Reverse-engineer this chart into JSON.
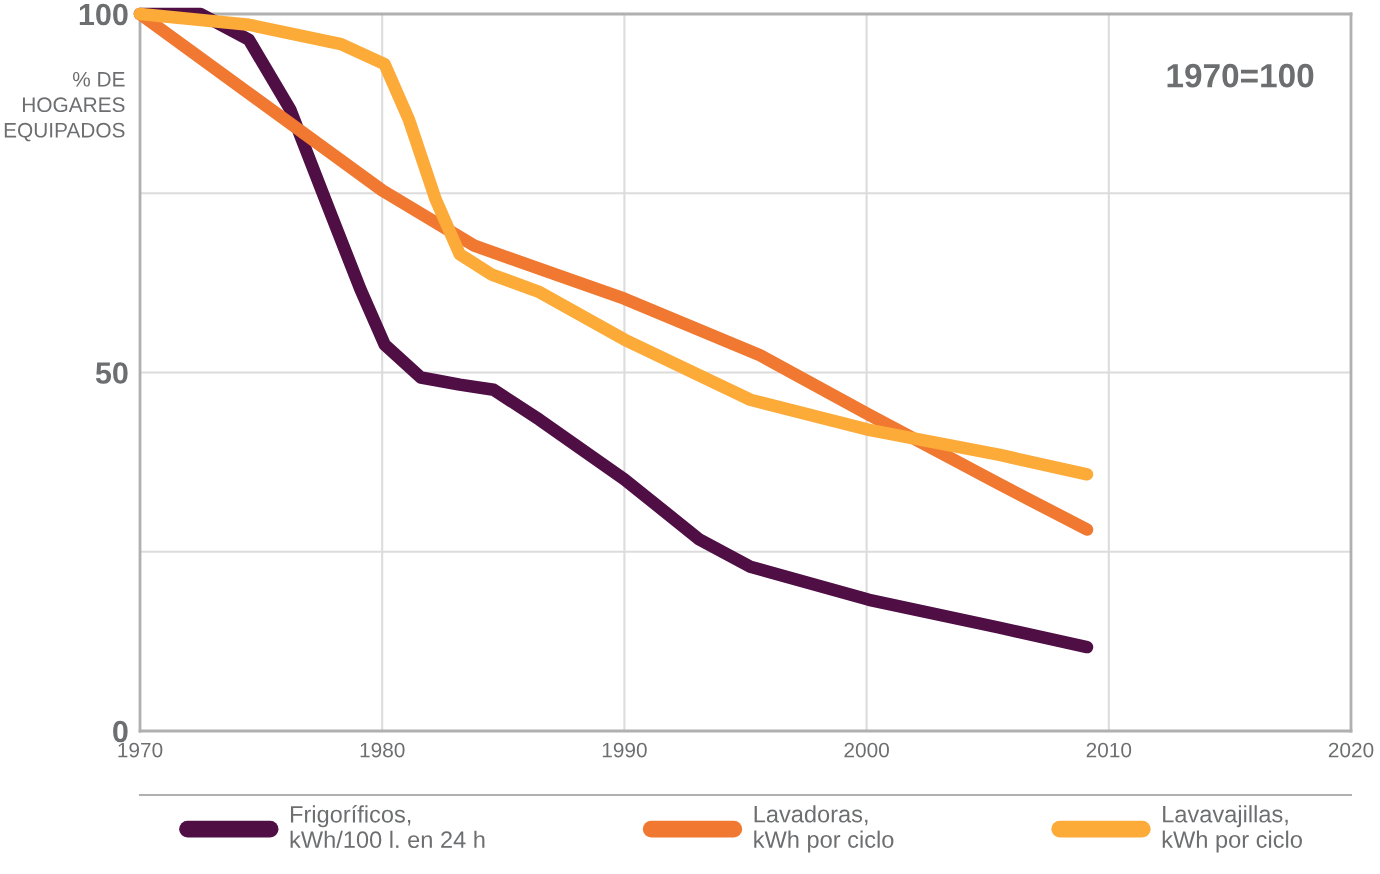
{
  "chart_data": {
    "type": "line",
    "ylabel": "% DE\nHOGARES\nEQUIPADOS",
    "annotations": [
      "1970=100"
    ],
    "xlim": [
      1970,
      2020
    ],
    "xticks": [
      1970,
      1980,
      1990,
      2000,
      2010,
      2020
    ],
    "ylim": [
      0,
      100
    ],
    "yticks": [
      0,
      {
        "value": 25,
        "label": null
      },
      50,
      {
        "value": 75,
        "label": null
      },
      100
    ],
    "grid": true,
    "legend": "bottom",
    "line_style": "solid",
    "series": [
      {
        "name": "Frigoríficos,\nkWh/100 l. en 24 h",
        "color": "#4f0f45",
        "x": [
          1970,
          1972.5,
          1974.5,
          1976.2,
          1977.8,
          1979.1,
          1980.1,
          1981.6,
          1983.2,
          1984.6,
          1986.5,
          1990,
          1993.1,
          1995.2,
          2000.1,
          2005.5,
          2009.1
        ],
        "values": [
          100,
          100,
          96.4,
          86.7,
          72.8,
          61.6,
          53.9,
          49.3,
          48.3,
          47.6,
          43.4,
          35.1,
          26.7,
          22.9,
          18.3,
          14.4,
          11.7
        ]
      },
      {
        "name": "Lavadoras,\nkWh por ciclo",
        "color": "#f07830",
        "x": [
          1970,
          1980,
          1983.8,
          1987.3,
          1990,
          1995.6,
          2000.1,
          2005.5,
          2009.1
        ],
        "values": [
          100,
          75.4,
          67.7,
          63.5,
          60.3,
          52.4,
          44.1,
          34.4,
          28.1
        ]
      },
      {
        "name": "Lavavajillas,\nkWh por ciclo",
        "color": "#fdab38",
        "x": [
          1970,
          1974.5,
          1978.3,
          1980.1,
          1981.1,
          1982.2,
          1983.2,
          1984.5,
          1986.5,
          1990,
          1995.2,
          2000.1,
          2005.5,
          2009.1
        ],
        "values": [
          100,
          98.5,
          95.8,
          93.0,
          85.3,
          74.2,
          66.5,
          63.7,
          61.2,
          54.6,
          46.2,
          42.0,
          38.5,
          35.8
        ]
      }
    ]
  }
}
